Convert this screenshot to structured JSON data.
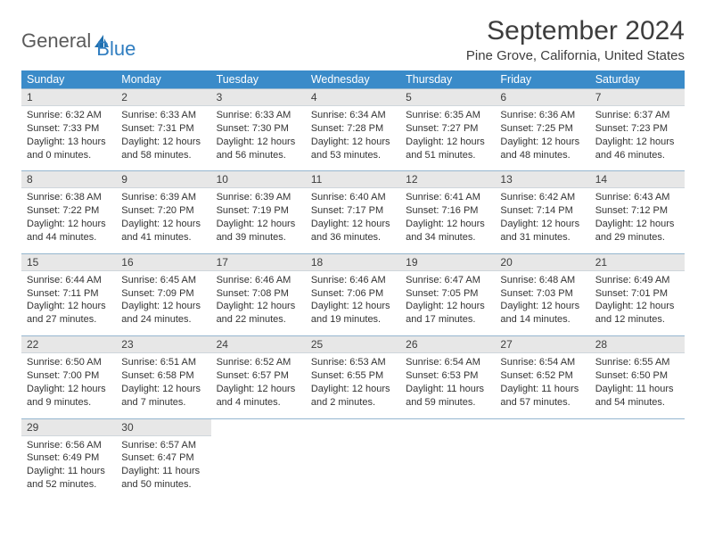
{
  "logo": {
    "text1": "General",
    "text2": "Blue"
  },
  "title": "September 2024",
  "location": "Pine Grove, California, United States",
  "colors": {
    "header_bg": "#3a8bc9",
    "daynum_bg": "#e7e7e7",
    "border": "#95b6cf"
  },
  "days_of_week": [
    "Sunday",
    "Monday",
    "Tuesday",
    "Wednesday",
    "Thursday",
    "Friday",
    "Saturday"
  ],
  "weeks": [
    {
      "nums": [
        "1",
        "2",
        "3",
        "4",
        "5",
        "6",
        "7"
      ],
      "details": [
        {
          "sunrise": "Sunrise: 6:32 AM",
          "sunset": "Sunset: 7:33 PM",
          "day1": "Daylight: 13 hours",
          "day2": "and 0 minutes."
        },
        {
          "sunrise": "Sunrise: 6:33 AM",
          "sunset": "Sunset: 7:31 PM",
          "day1": "Daylight: 12 hours",
          "day2": "and 58 minutes."
        },
        {
          "sunrise": "Sunrise: 6:33 AM",
          "sunset": "Sunset: 7:30 PM",
          "day1": "Daylight: 12 hours",
          "day2": "and 56 minutes."
        },
        {
          "sunrise": "Sunrise: 6:34 AM",
          "sunset": "Sunset: 7:28 PM",
          "day1": "Daylight: 12 hours",
          "day2": "and 53 minutes."
        },
        {
          "sunrise": "Sunrise: 6:35 AM",
          "sunset": "Sunset: 7:27 PM",
          "day1": "Daylight: 12 hours",
          "day2": "and 51 minutes."
        },
        {
          "sunrise": "Sunrise: 6:36 AM",
          "sunset": "Sunset: 7:25 PM",
          "day1": "Daylight: 12 hours",
          "day2": "and 48 minutes."
        },
        {
          "sunrise": "Sunrise: 6:37 AM",
          "sunset": "Sunset: 7:23 PM",
          "day1": "Daylight: 12 hours",
          "day2": "and 46 minutes."
        }
      ]
    },
    {
      "nums": [
        "8",
        "9",
        "10",
        "11",
        "12",
        "13",
        "14"
      ],
      "details": [
        {
          "sunrise": "Sunrise: 6:38 AM",
          "sunset": "Sunset: 7:22 PM",
          "day1": "Daylight: 12 hours",
          "day2": "and 44 minutes."
        },
        {
          "sunrise": "Sunrise: 6:39 AM",
          "sunset": "Sunset: 7:20 PM",
          "day1": "Daylight: 12 hours",
          "day2": "and 41 minutes."
        },
        {
          "sunrise": "Sunrise: 6:39 AM",
          "sunset": "Sunset: 7:19 PM",
          "day1": "Daylight: 12 hours",
          "day2": "and 39 minutes."
        },
        {
          "sunrise": "Sunrise: 6:40 AM",
          "sunset": "Sunset: 7:17 PM",
          "day1": "Daylight: 12 hours",
          "day2": "and 36 minutes."
        },
        {
          "sunrise": "Sunrise: 6:41 AM",
          "sunset": "Sunset: 7:16 PM",
          "day1": "Daylight: 12 hours",
          "day2": "and 34 minutes."
        },
        {
          "sunrise": "Sunrise: 6:42 AM",
          "sunset": "Sunset: 7:14 PM",
          "day1": "Daylight: 12 hours",
          "day2": "and 31 minutes."
        },
        {
          "sunrise": "Sunrise: 6:43 AM",
          "sunset": "Sunset: 7:12 PM",
          "day1": "Daylight: 12 hours",
          "day2": "and 29 minutes."
        }
      ]
    },
    {
      "nums": [
        "15",
        "16",
        "17",
        "18",
        "19",
        "20",
        "21"
      ],
      "details": [
        {
          "sunrise": "Sunrise: 6:44 AM",
          "sunset": "Sunset: 7:11 PM",
          "day1": "Daylight: 12 hours",
          "day2": "and 27 minutes."
        },
        {
          "sunrise": "Sunrise: 6:45 AM",
          "sunset": "Sunset: 7:09 PM",
          "day1": "Daylight: 12 hours",
          "day2": "and 24 minutes."
        },
        {
          "sunrise": "Sunrise: 6:46 AM",
          "sunset": "Sunset: 7:08 PM",
          "day1": "Daylight: 12 hours",
          "day2": "and 22 minutes."
        },
        {
          "sunrise": "Sunrise: 6:46 AM",
          "sunset": "Sunset: 7:06 PM",
          "day1": "Daylight: 12 hours",
          "day2": "and 19 minutes."
        },
        {
          "sunrise": "Sunrise: 6:47 AM",
          "sunset": "Sunset: 7:05 PM",
          "day1": "Daylight: 12 hours",
          "day2": "and 17 minutes."
        },
        {
          "sunrise": "Sunrise: 6:48 AM",
          "sunset": "Sunset: 7:03 PM",
          "day1": "Daylight: 12 hours",
          "day2": "and 14 minutes."
        },
        {
          "sunrise": "Sunrise: 6:49 AM",
          "sunset": "Sunset: 7:01 PM",
          "day1": "Daylight: 12 hours",
          "day2": "and 12 minutes."
        }
      ]
    },
    {
      "nums": [
        "22",
        "23",
        "24",
        "25",
        "26",
        "27",
        "28"
      ],
      "details": [
        {
          "sunrise": "Sunrise: 6:50 AM",
          "sunset": "Sunset: 7:00 PM",
          "day1": "Daylight: 12 hours",
          "day2": "and 9 minutes."
        },
        {
          "sunrise": "Sunrise: 6:51 AM",
          "sunset": "Sunset: 6:58 PM",
          "day1": "Daylight: 12 hours",
          "day2": "and 7 minutes."
        },
        {
          "sunrise": "Sunrise: 6:52 AM",
          "sunset": "Sunset: 6:57 PM",
          "day1": "Daylight: 12 hours",
          "day2": "and 4 minutes."
        },
        {
          "sunrise": "Sunrise: 6:53 AM",
          "sunset": "Sunset: 6:55 PM",
          "day1": "Daylight: 12 hours",
          "day2": "and 2 minutes."
        },
        {
          "sunrise": "Sunrise: 6:54 AM",
          "sunset": "Sunset: 6:53 PM",
          "day1": "Daylight: 11 hours",
          "day2": "and 59 minutes."
        },
        {
          "sunrise": "Sunrise: 6:54 AM",
          "sunset": "Sunset: 6:52 PM",
          "day1": "Daylight: 11 hours",
          "day2": "and 57 minutes."
        },
        {
          "sunrise": "Sunrise: 6:55 AM",
          "sunset": "Sunset: 6:50 PM",
          "day1": "Daylight: 11 hours",
          "day2": "and 54 minutes."
        }
      ]
    },
    {
      "nums": [
        "29",
        "30",
        "",
        "",
        "",
        "",
        ""
      ],
      "details": [
        {
          "sunrise": "Sunrise: 6:56 AM",
          "sunset": "Sunset: 6:49 PM",
          "day1": "Daylight: 11 hours",
          "day2": "and 52 minutes."
        },
        {
          "sunrise": "Sunrise: 6:57 AM",
          "sunset": "Sunset: 6:47 PM",
          "day1": "Daylight: 11 hours",
          "day2": "and 50 minutes."
        },
        null,
        null,
        null,
        null,
        null
      ]
    }
  ]
}
